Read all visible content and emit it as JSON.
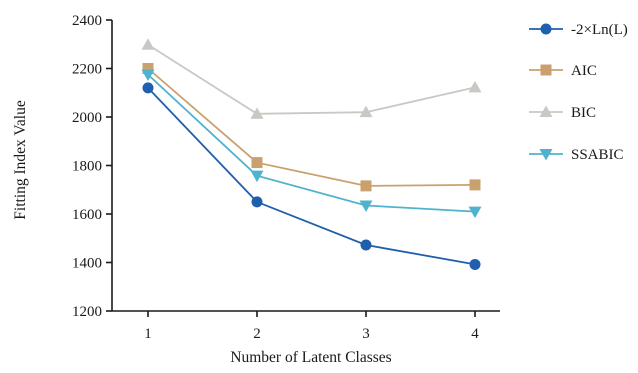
{
  "chart_data": {
    "type": "line",
    "title": "",
    "xlabel": "Number of Latent Classes",
    "ylabel": "Fitting Index Value",
    "x": [
      1,
      2,
      3,
      4
    ],
    "x_tick_labels": [
      "1",
      "2",
      "3",
      "4"
    ],
    "ylim": [
      1200,
      2400
    ],
    "y_ticks": [
      1200,
      1400,
      1600,
      1800,
      2000,
      2200,
      2400
    ],
    "y_tick_labels": [
      "1200",
      "1400",
      "1600",
      "1800",
      "2000",
      "2200",
      "2400"
    ],
    "grid": false,
    "legend_position": "right",
    "series": [
      {
        "name": "-2×Ln(L)",
        "values": [
          2120,
          1650,
          1472,
          1392
        ],
        "color": "#1f5fad",
        "marker": "circle"
      },
      {
        "name": "AIC",
        "values": [
          2200,
          1812,
          1716,
          1720
        ],
        "color": "#c9a06e",
        "marker": "square"
      },
      {
        "name": "BIC",
        "values": [
          2298,
          2013,
          2020,
          2122
        ],
        "color": "#c8c8c4",
        "marker": "triangle-up"
      },
      {
        "name": "SSABIC",
        "values": [
          2175,
          1758,
          1635,
          1610
        ],
        "color": "#4fb3cf",
        "marker": "triangle-down"
      }
    ]
  }
}
